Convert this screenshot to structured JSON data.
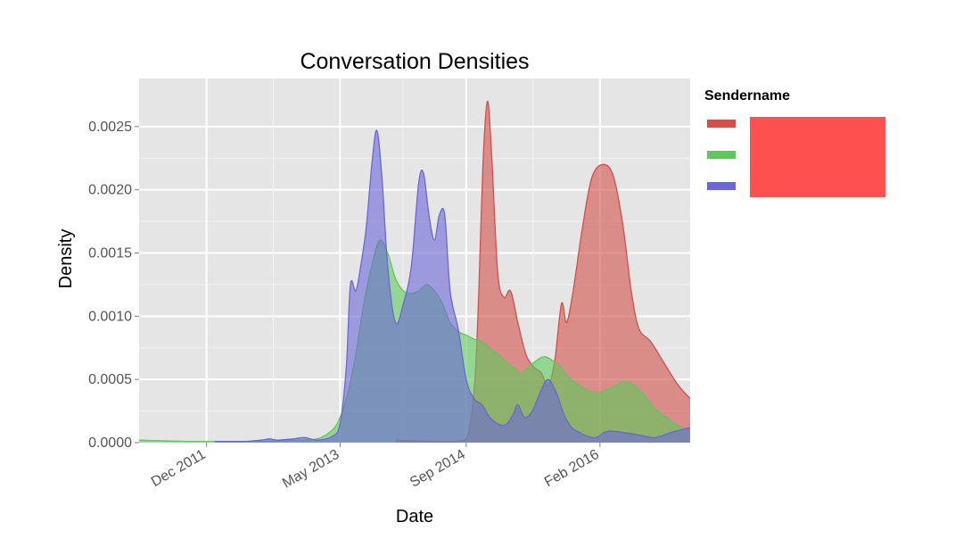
{
  "chart_data": {
    "type": "area",
    "title": "Conversation Densities",
    "xlabel": "Date",
    "ylabel": "Density",
    "x_ticks": [
      "Dec 2011",
      "May 2013",
      "Sep 2014",
      "Feb 2016"
    ],
    "y_ticks": [
      "0.0000",
      "0.0005",
      "0.0010",
      "0.0015",
      "0.0020",
      "0.0025"
    ],
    "ylim": [
      0,
      0.00288
    ],
    "xlim": [
      "2011-03-15",
      "2017-01-15"
    ],
    "grid": true,
    "legend": {
      "title": "Sendername",
      "placement": "right",
      "redacted": true
    },
    "series": [
      {
        "color": "#d1504a",
        "fill": "rgba(209,80,74,0.6)",
        "points": [
          [
            "2013-12-01",
            2e-05
          ],
          [
            "2014-05-01",
            1e-05
          ],
          [
            "2014-08-01",
            1e-05
          ],
          [
            "2014-09-10",
            8e-05
          ],
          [
            "2014-10-05",
            0.0005
          ],
          [
            "2014-10-20",
            0.0012
          ],
          [
            "2014-11-05",
            0.0022
          ],
          [
            "2014-11-22",
            0.0027
          ],
          [
            "2014-12-08",
            0.0023
          ],
          [
            "2015-01-01",
            0.00135
          ],
          [
            "2015-01-25",
            0.00115
          ],
          [
            "2015-02-20",
            0.0012
          ],
          [
            "2015-03-20",
            0.00095
          ],
          [
            "2015-04-20",
            0.0007
          ],
          [
            "2015-05-20",
            0.0006
          ],
          [
            "2015-06-20",
            0.00055
          ],
          [
            "2015-07-15",
            0.00045
          ],
          [
            "2015-08-10",
            0.00065
          ],
          [
            "2015-09-05",
            0.0011
          ],
          [
            "2015-09-25",
            0.00095
          ],
          [
            "2015-10-20",
            0.0012
          ],
          [
            "2015-11-25",
            0.0017
          ],
          [
            "2016-01-01",
            0.0021
          ],
          [
            "2016-02-15",
            0.0022
          ],
          [
            "2016-03-25",
            0.0021
          ],
          [
            "2016-05-01",
            0.0017
          ],
          [
            "2016-06-01",
            0.0012
          ],
          [
            "2016-07-01",
            0.0009
          ],
          [
            "2016-08-15",
            0.0008
          ],
          [
            "2016-10-15",
            0.0006
          ],
          [
            "2016-12-01",
            0.00045
          ],
          [
            "2017-01-15",
            0.00035
          ]
        ]
      },
      {
        "color": "#5cc95a",
        "fill": "rgba(92,201,90,0.6)",
        "points": [
          [
            "2011-03-15",
            2e-05
          ],
          [
            "2011-09-15",
            1e-05
          ],
          [
            "2012-06-15",
            1e-05
          ],
          [
            "2012-11-01",
            2e-05
          ],
          [
            "2013-02-01",
            3e-05
          ],
          [
            "2013-04-01",
            0.0001
          ],
          [
            "2013-05-01",
            0.0002
          ],
          [
            "2013-06-01",
            0.0004
          ],
          [
            "2013-07-01",
            0.0007
          ],
          [
            "2013-08-01",
            0.0011
          ],
          [
            "2013-09-01",
            0.0014
          ],
          [
            "2013-10-01",
            0.0016
          ],
          [
            "2013-11-01",
            0.0015
          ],
          [
            "2013-12-01",
            0.0013
          ],
          [
            "2014-01-01",
            0.0012
          ],
          [
            "2014-02-01",
            0.00118
          ],
          [
            "2014-03-01",
            0.0012
          ],
          [
            "2014-04-01",
            0.00125
          ],
          [
            "2014-05-01",
            0.0012
          ],
          [
            "2014-06-01",
            0.0011
          ],
          [
            "2014-07-01",
            0.00095
          ],
          [
            "2014-08-01",
            0.00088
          ],
          [
            "2014-09-01",
            0.00085
          ],
          [
            "2014-10-01",
            0.00082
          ],
          [
            "2014-11-01",
            0.0008
          ],
          [
            "2014-12-01",
            0.00075
          ],
          [
            "2015-01-01",
            0.0007
          ],
          [
            "2015-02-01",
            0.00064
          ],
          [
            "2015-03-01",
            0.0006
          ],
          [
            "2015-04-01",
            0.00055
          ],
          [
            "2015-05-01",
            0.0006
          ],
          [
            "2015-06-01",
            0.00065
          ],
          [
            "2015-07-01",
            0.00068
          ],
          [
            "2015-08-01",
            0.00065
          ],
          [
            "2015-09-01",
            0.0006
          ],
          [
            "2015-10-01",
            0.00052
          ],
          [
            "2015-11-01",
            0.00047
          ],
          [
            "2015-12-01",
            0.00043
          ],
          [
            "2016-01-01",
            0.0004
          ],
          [
            "2016-02-01",
            0.0004
          ],
          [
            "2016-03-01",
            0.00042
          ],
          [
            "2016-04-01",
            0.00045
          ],
          [
            "2016-05-01",
            0.00048
          ],
          [
            "2016-06-01",
            0.00047
          ],
          [
            "2016-07-01",
            0.00042
          ],
          [
            "2016-08-01",
            0.00035
          ],
          [
            "2016-09-01",
            0.00027
          ],
          [
            "2016-10-15",
            0.0002
          ],
          [
            "2016-12-01",
            0.00013
          ],
          [
            "2017-01-15",
            0.0001
          ]
        ]
      },
      {
        "color": "#6a67d6",
        "fill": "rgba(106,103,214,0.6)",
        "points": [
          [
            "2012-01-01",
            1e-05
          ],
          [
            "2012-05-01",
            1e-05
          ],
          [
            "2012-07-01",
            2e-05
          ],
          [
            "2012-08-01",
            3e-05
          ],
          [
            "2012-09-01",
            2e-05
          ],
          [
            "2012-11-01",
            3e-05
          ],
          [
            "2012-12-15",
            4e-05
          ],
          [
            "2013-02-01",
            2e-05
          ],
          [
            "2013-04-01",
            5e-05
          ],
          [
            "2013-05-01",
            0.00015
          ],
          [
            "2013-05-25",
            0.0006
          ],
          [
            "2013-06-10",
            0.00125
          ],
          [
            "2013-07-01",
            0.0012
          ],
          [
            "2013-07-20",
            0.0014
          ],
          [
            "2013-08-10",
            0.0017
          ],
          [
            "2013-09-01",
            0.0022
          ],
          [
            "2013-09-20",
            0.00247
          ],
          [
            "2013-10-10",
            0.0021
          ],
          [
            "2013-11-01",
            0.0014
          ],
          [
            "2013-12-01",
            0.00095
          ],
          [
            "2014-01-01",
            0.0011
          ],
          [
            "2014-02-01",
            0.0014
          ],
          [
            "2014-03-01",
            0.00205
          ],
          [
            "2014-03-20",
            0.00213
          ],
          [
            "2014-04-10",
            0.0018
          ],
          [
            "2014-05-01",
            0.0016
          ],
          [
            "2014-05-20",
            0.0018
          ],
          [
            "2014-06-10",
            0.0018
          ],
          [
            "2014-07-01",
            0.0012
          ],
          [
            "2014-08-01",
            0.0009
          ],
          [
            "2014-09-01",
            0.0005
          ],
          [
            "2014-10-01",
            0.00035
          ],
          [
            "2014-11-01",
            0.0003
          ],
          [
            "2014-12-01",
            0.0002
          ],
          [
            "2015-01-01",
            0.00015
          ],
          [
            "2015-02-01",
            0.00014
          ],
          [
            "2015-03-01",
            0.00022
          ],
          [
            "2015-03-20",
            0.0003
          ],
          [
            "2015-04-15",
            0.0002
          ],
          [
            "2015-05-15",
            0.00025
          ],
          [
            "2015-06-15",
            0.0004
          ],
          [
            "2015-07-15",
            0.0005
          ],
          [
            "2015-08-15",
            0.0004
          ],
          [
            "2015-09-15",
            0.00022
          ],
          [
            "2015-10-15",
            0.00012
          ],
          [
            "2015-11-15",
            8e-05
          ],
          [
            "2015-12-15",
            5e-05
          ],
          [
            "2016-01-15",
            4e-05
          ],
          [
            "2016-03-01",
            9e-05
          ],
          [
            "2016-05-01",
            8e-05
          ],
          [
            "2016-07-01",
            6e-05
          ],
          [
            "2016-09-01",
            4e-05
          ],
          [
            "2016-11-01",
            8e-05
          ],
          [
            "2017-01-15",
            0.00012
          ]
        ]
      }
    ]
  }
}
